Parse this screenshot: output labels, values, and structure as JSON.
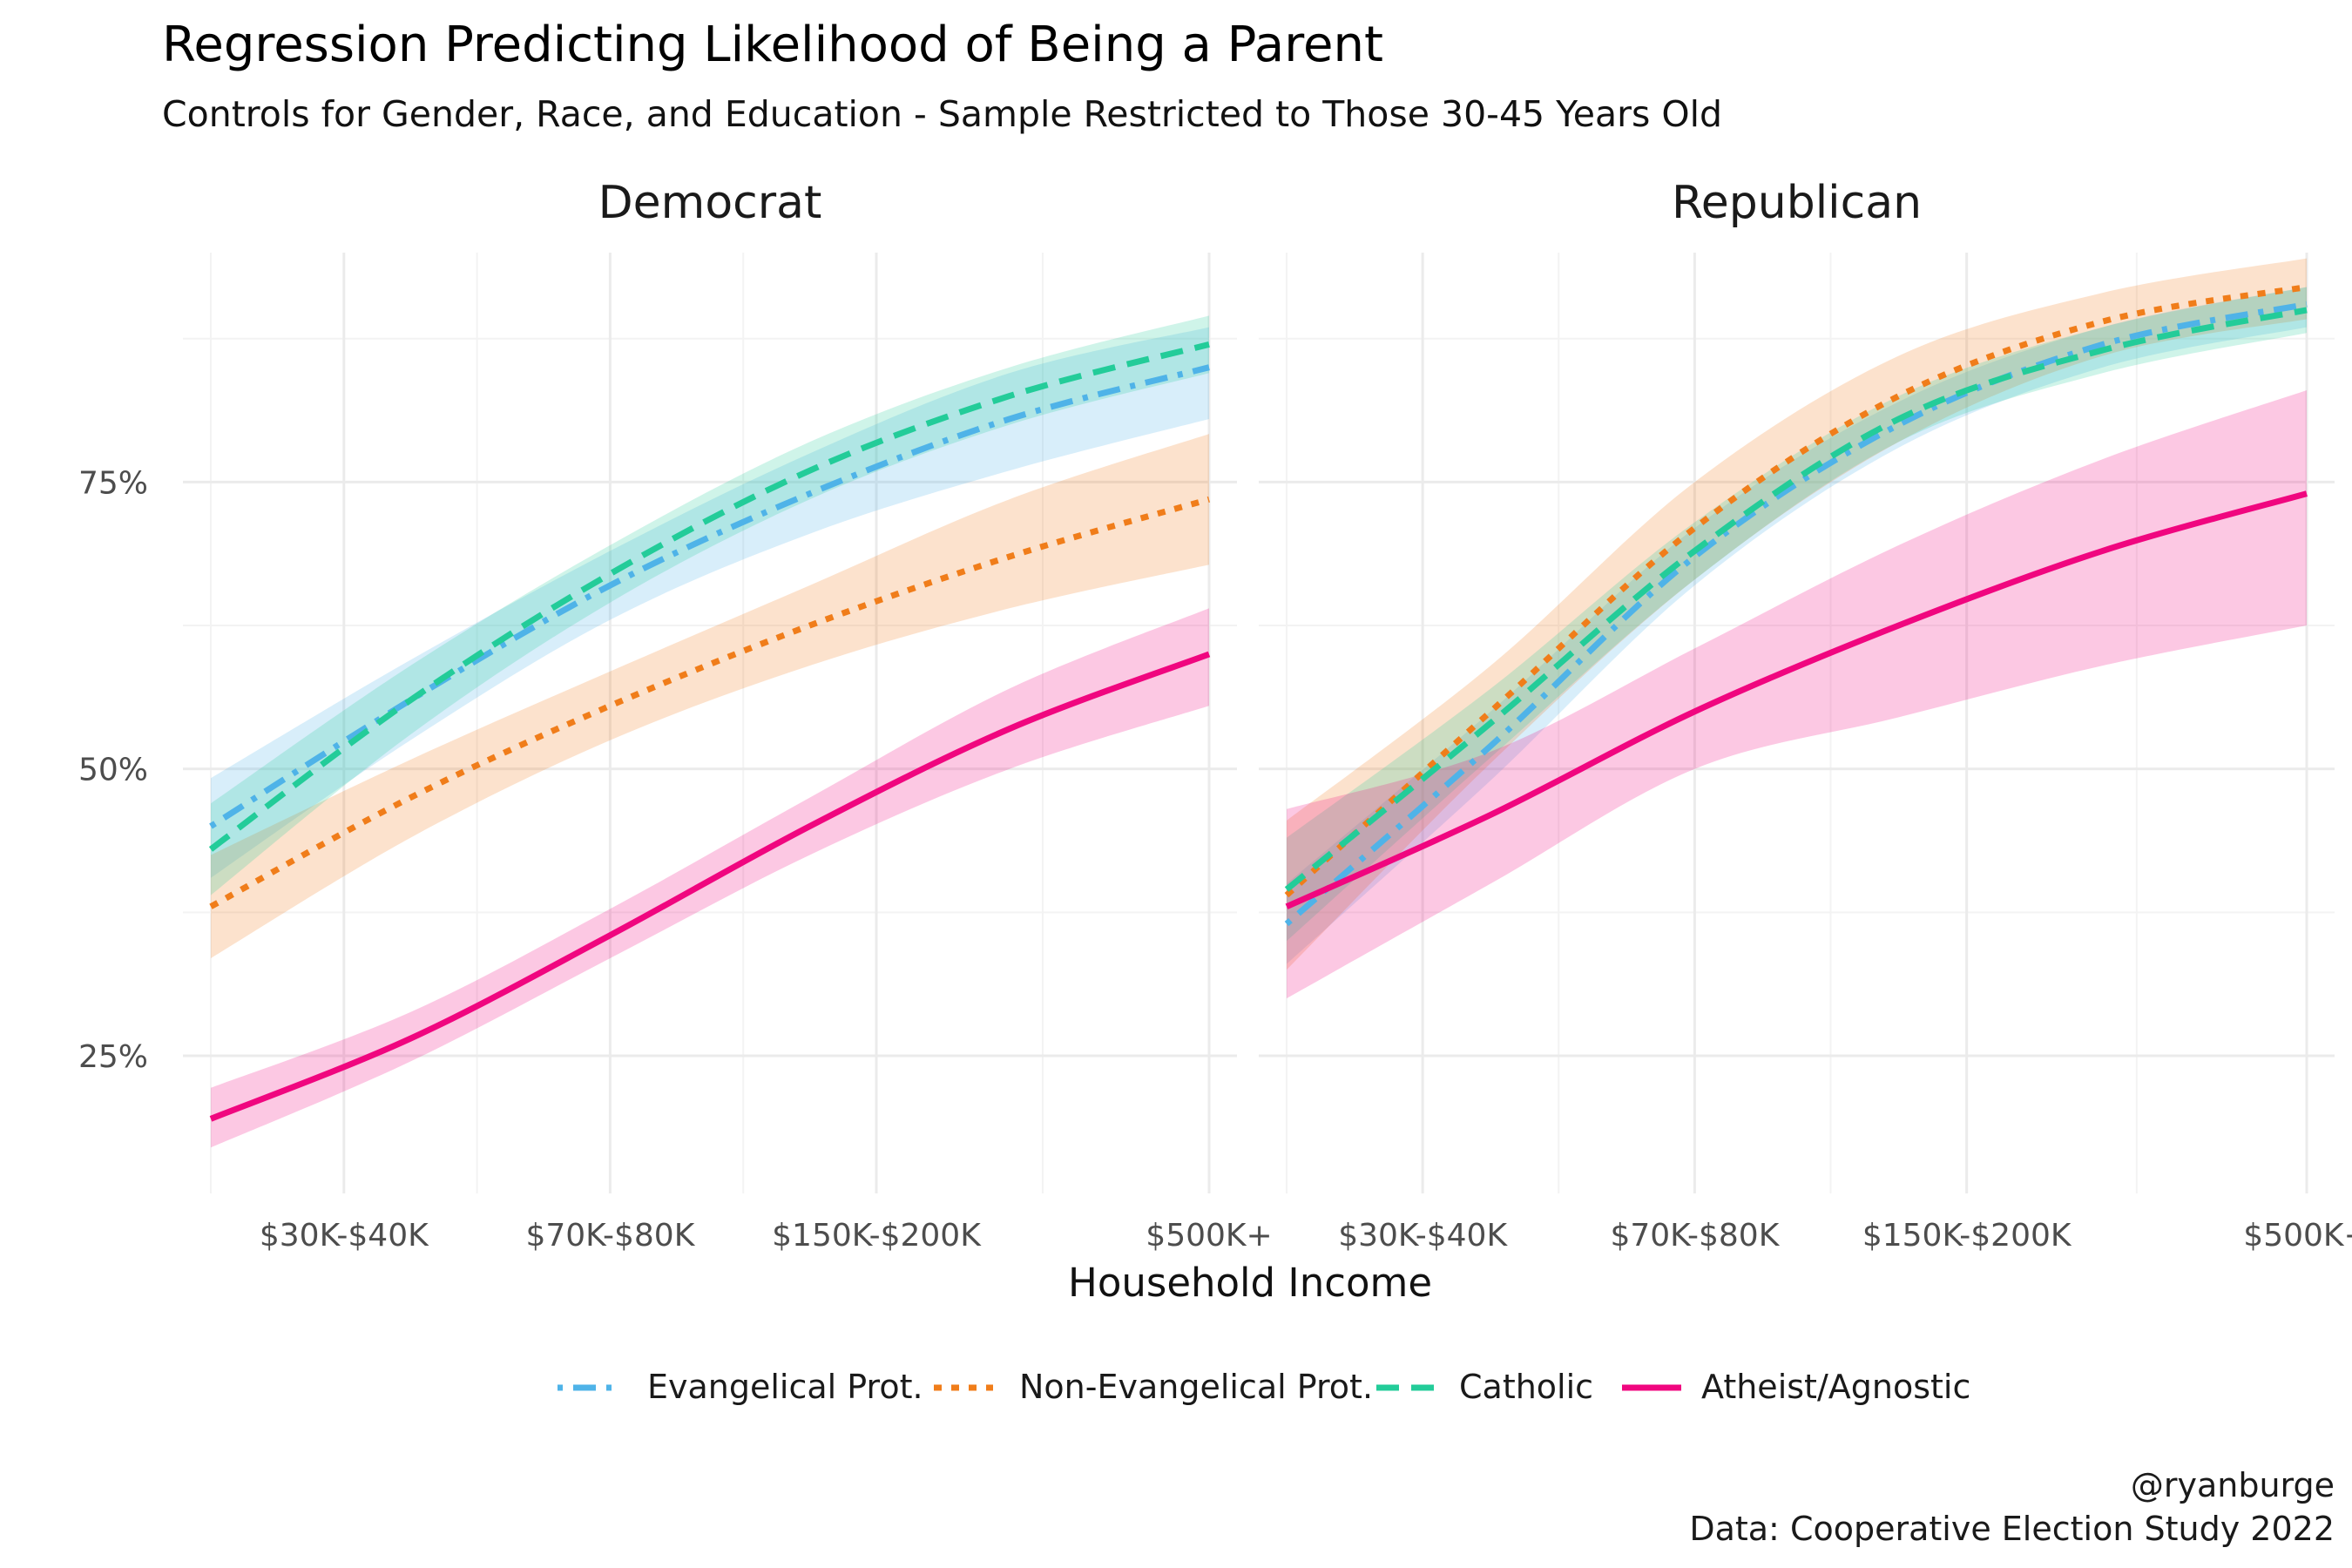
{
  "chart_data": {
    "type": "line",
    "title": "Regression Predicting Likelihood of Being a Parent",
    "subtitle": "Controls for Gender, Race, and Education - Sample Restricted to Those 30-45 Years Old",
    "xlabel": "Household Income",
    "ylabel": "",
    "x_ticks": [
      {
        "x": 3,
        "label": "$30K-$40K"
      },
      {
        "x": 7,
        "label": "$70K-$80K"
      },
      {
        "x": 11,
        "label": "$150K-$200K"
      },
      {
        "x": 16,
        "label": "$500K+"
      }
    ],
    "x_range": [
      1,
      16
    ],
    "y_ticks": [
      {
        "y": 0.25,
        "label": "25%"
      },
      {
        "y": 0.5,
        "label": "50%"
      },
      {
        "y": 0.75,
        "label": "75%"
      }
    ],
    "ylim": [
      0.13,
      0.95
    ],
    "legend_position": "bottom",
    "caption": [
      "@ryanburge",
      "Data: Cooperative Election Study 2022"
    ],
    "series": [
      {
        "name": "Evangelical Prot.",
        "color": "#4fb3e8",
        "dash": "dotdash"
      },
      {
        "name": "Non-Evangelical Prot.",
        "color": "#f07d1a",
        "dash": "dotted"
      },
      {
        "name": "Catholic",
        "color": "#23cc99",
        "dash": "dashed"
      },
      {
        "name": "Atheist/Agnostic",
        "color": "#f0067f",
        "dash": "solid"
      }
    ],
    "panels": [
      {
        "name": "Democrat",
        "lines": [
          {
            "series": "Evangelical Prot.",
            "x": [
              1,
              4,
              7,
              10,
              13,
              16
            ],
            "y": [
              0.45,
              0.56,
              0.66,
              0.74,
              0.805,
              0.85
            ],
            "lo": [
              0.405,
              0.525,
              0.63,
              0.705,
              0.76,
              0.805
            ],
            "hi": [
              0.492,
              0.595,
              0.69,
              0.775,
              0.845,
              0.885
            ]
          },
          {
            "series": "Non-Evangelical Prot.",
            "x": [
              1,
              4,
              7,
              10,
              13,
              16
            ],
            "y": [
              0.38,
              0.475,
              0.555,
              0.625,
              0.685,
              0.735
            ],
            "lo": [
              0.335,
              0.44,
              0.525,
              0.59,
              0.64,
              0.678
            ],
            "hi": [
              0.425,
              0.508,
              0.585,
              0.66,
              0.735,
              0.792
            ]
          },
          {
            "series": "Catholic",
            "x": [
              1,
              4,
              7,
              10,
              13,
              16
            ],
            "y": [
              0.43,
              0.56,
              0.67,
              0.76,
              0.825,
              0.87
            ],
            "lo": [
              0.39,
              0.53,
              0.645,
              0.735,
              0.8,
              0.845
            ],
            "hi": [
              0.47,
              0.59,
              0.695,
              0.785,
              0.85,
              0.895
            ]
          },
          {
            "series": "Atheist/Agnostic",
            "x": [
              1,
              4,
              7,
              10,
              13,
              16
            ],
            "y": [
              0.195,
              0.265,
              0.355,
              0.45,
              0.535,
              0.6
            ],
            "lo": [
              0.17,
              0.245,
              0.335,
              0.425,
              0.5,
              0.555
            ],
            "hi": [
              0.222,
              0.288,
              0.378,
              0.475,
              0.57,
              0.64
            ]
          }
        ]
      },
      {
        "name": "Republican",
        "lines": [
          {
            "series": "Evangelical Prot.",
            "x": [
              1,
              4,
              7,
              10,
              13,
              16
            ],
            "y": [
              0.365,
              0.52,
              0.685,
              0.8,
              0.87,
              0.905
            ],
            "lo": [
              0.33,
              0.49,
              0.66,
              0.78,
              0.85,
              0.885
            ],
            "hi": [
              0.4,
              0.55,
              0.71,
              0.82,
              0.885,
              0.92
            ]
          },
          {
            "series": "Non-Evangelical Prot.",
            "x": [
              1,
              4,
              7,
              10,
              13,
              16
            ],
            "y": [
              0.39,
              0.55,
              0.71,
              0.825,
              0.89,
              0.92
            ],
            "lo": [
              0.325,
              0.505,
              0.665,
              0.785,
              0.86,
              0.892
            ],
            "hi": [
              0.455,
              0.59,
              0.75,
              0.86,
              0.915,
              0.945
            ]
          },
          {
            "series": "Catholic",
            "x": [
              1,
              4,
              7,
              10,
              13,
              16
            ],
            "y": [
              0.395,
              0.54,
              0.69,
              0.805,
              0.865,
              0.9
            ],
            "lo": [
              0.35,
              0.51,
              0.665,
              0.785,
              0.845,
              0.88
            ],
            "hi": [
              0.44,
              0.57,
              0.715,
              0.825,
              0.885,
              0.92
            ]
          },
          {
            "series": "Atheist/Agnostic",
            "x": [
              1,
              4,
              7,
              10,
              13,
              16
            ],
            "y": [
              0.38,
              0.46,
              0.55,
              0.625,
              0.69,
              0.74
            ],
            "lo": [
              0.3,
              0.4,
              0.5,
              0.545,
              0.59,
              0.625
            ],
            "hi": [
              0.465,
              0.515,
              0.605,
              0.695,
              0.77,
              0.83
            ]
          }
        ]
      }
    ]
  }
}
